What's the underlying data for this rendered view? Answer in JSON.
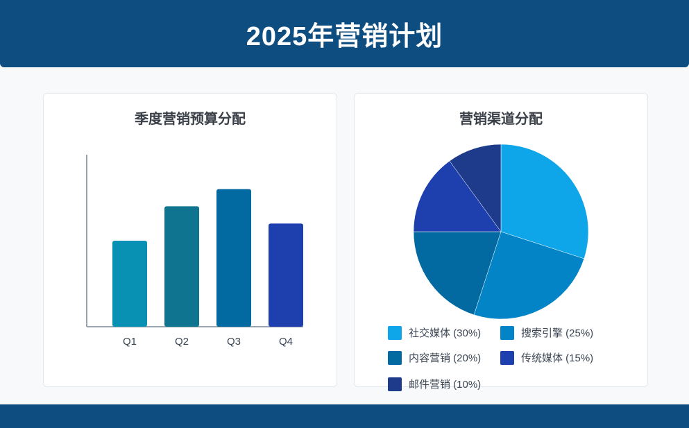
{
  "header": {
    "title": "2025年营销计划"
  },
  "chart_data": [
    {
      "type": "bar",
      "title": "季度营销预算分配",
      "categories": [
        "Q1",
        "Q2",
        "Q3",
        "Q4"
      ],
      "values": [
        50,
        70,
        80,
        60
      ],
      "ylim": [
        0,
        100
      ],
      "colors": [
        "#0891b2",
        "#0e7490",
        "#0369a1",
        "#1e40af"
      ],
      "xlabel": "",
      "ylabel": ""
    },
    {
      "type": "pie",
      "title": "营销渠道分配",
      "labels": [
        "社交媒体",
        "搜索引擎",
        "内容营销",
        "传统媒体",
        "邮件营销"
      ],
      "legend_labels": [
        "社交媒体 (30%)",
        "搜索引擎 (25%)",
        "内容营销 (20%)",
        "传统媒体 (15%)",
        "邮件营销 (10%)"
      ],
      "values": [
        30,
        25,
        20,
        15,
        10
      ],
      "colors": [
        "#0ea5e9",
        "#0284c7",
        "#0369a1",
        "#1e40af",
        "#1e3a8a"
      ],
      "legend_position": "bottom"
    }
  ]
}
